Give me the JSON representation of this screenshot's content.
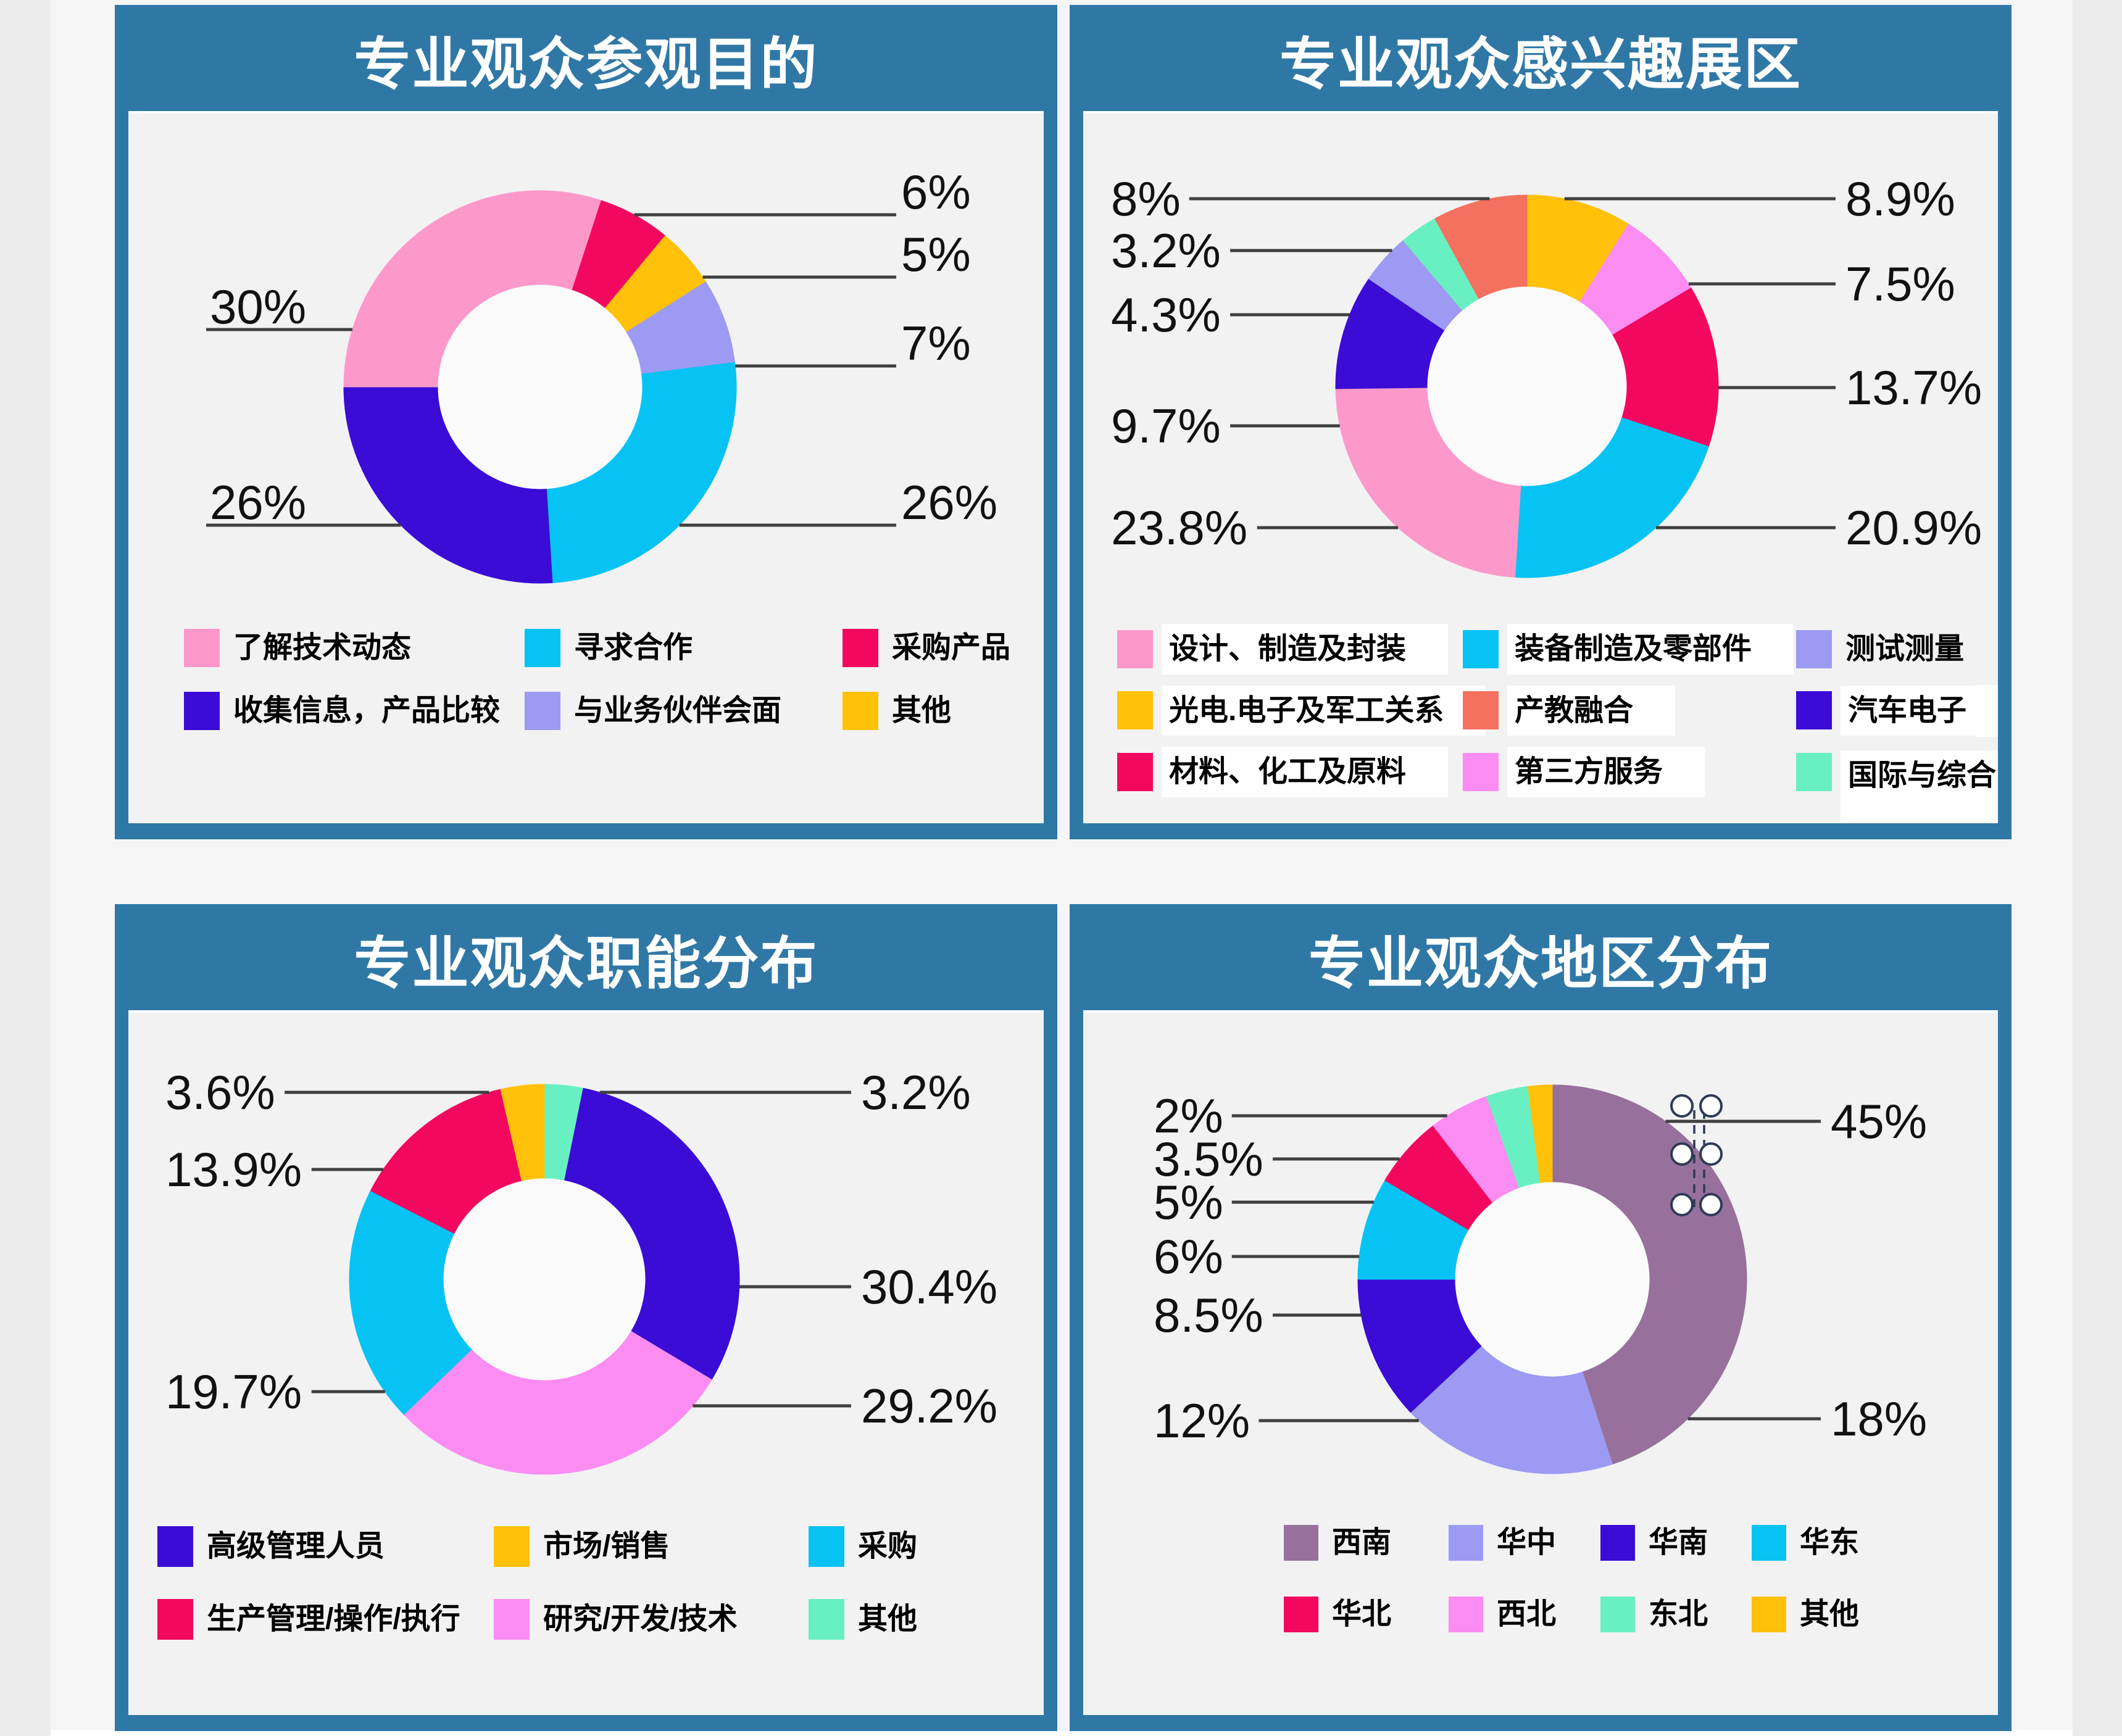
{
  "page": {
    "app_background": "#ECECEC",
    "sheet_background": "#F5F5F6",
    "panel_frame_color": "#2F78A6",
    "panel_title_text_color": "#FFFFFF",
    "leader_line_color": "#3F3F3F"
  },
  "palette": {
    "pink": "#FC99CA",
    "crimson": "#F2095F",
    "gold": "#FFC10A",
    "indigo": "#3A0CD6",
    "periwinkle": "#9D9AF3",
    "cyan": "#07C3F4",
    "coral": "#F4715F",
    "violet": "#FB8CF2",
    "mint": "#68F0C2",
    "mauve": "#97719B"
  },
  "chart_data": [
    {
      "type": "pie",
      "shape": "donut",
      "title": "专业观众参观目的",
      "start_angle": 18,
      "slices": [
        {
          "label": "采购产品",
          "value": 6,
          "color": "crimson",
          "label_side": "right",
          "label_y": 164
        },
        {
          "label": "其他",
          "value": 5,
          "color": "gold",
          "label_side": "right",
          "label_y": 265
        },
        {
          "label": "与业务伙伴会面",
          "value": 7,
          "color": "periwinkle",
          "label_side": "right",
          "label_y": 409
        },
        {
          "label": "寻求合作",
          "value": 26,
          "color": "cyan",
          "label_side": "right",
          "label_y": 667
        },
        {
          "label": "收集信息，产品比较",
          "value": 26,
          "color": "indigo",
          "label_side": "left",
          "label_y": 667
        },
        {
          "label": "了解技术动态",
          "value": 30,
          "color": "pink",
          "label_side": "left",
          "label_y": 350
        }
      ],
      "legend_columns": 3,
      "legend": [
        {
          "label": "了解技术动态",
          "color": "pink"
        },
        {
          "label": "寻求合作",
          "color": "cyan"
        },
        {
          "label": "采购产品",
          "color": "crimson"
        },
        {
          "label": "收集信息，产品比较",
          "color": "indigo"
        },
        {
          "label": "与业务伙伴会面",
          "color": "periwinkle"
        },
        {
          "label": "其他",
          "color": "gold"
        }
      ]
    },
    {
      "type": "pie",
      "shape": "donut",
      "title": "专业观众感兴趣展区",
      "start_angle": 0,
      "slices": [
        {
          "label": "光电.电子及军工关系",
          "value": 8.9,
          "color": "gold",
          "label_side": "right",
          "label_y": 138
        },
        {
          "label": "第三方服务",
          "value": 7.5,
          "color": "violet",
          "label_side": "right",
          "label_y": 276
        },
        {
          "label": "材料、化工及原料",
          "value": 13.7,
          "color": "crimson",
          "label_side": "right",
          "label_y": 444
        },
        {
          "label": "装备制造及零部件",
          "value": 20.9,
          "color": "cyan",
          "label_side": "right",
          "label_y": 671
        },
        {
          "label": "设计、制造及封装",
          "value": 23.8,
          "color": "pink",
          "label_side": "left",
          "label_y": 671
        },
        {
          "label": "汽车电子",
          "value": 9.7,
          "color": "indigo",
          "label_side": "left",
          "label_y": 506
        },
        {
          "label": "测试测量",
          "value": 4.3,
          "color": "periwinkle",
          "label_side": "left",
          "label_y": 326
        },
        {
          "label": "国际与综合",
          "value": 3.2,
          "color": "mint",
          "label_side": "left",
          "label_y": 222
        },
        {
          "label": "产教融合",
          "value": 8,
          "color": "coral",
          "label_side": "left",
          "label_y": 138
        }
      ],
      "legend_columns": 3,
      "legend_boxed": true,
      "legend": [
        {
          "label": "设计、制造及封装",
          "color": "pink",
          "box": true
        },
        {
          "label": "装备制造及零部件",
          "color": "cyan",
          "box": true
        },
        {
          "label": "测试测量",
          "color": "periwinkle",
          "box": false
        },
        {
          "label": "光电.电子及军工关系",
          "color": "gold",
          "box": true
        },
        {
          "label": "产教融合",
          "color": "coral",
          "box": true
        },
        {
          "label": "汽车电子",
          "color": "indigo",
          "box": true
        },
        {
          "label": "材料、化工及原料",
          "color": "crimson",
          "box": true
        },
        {
          "label": "第三方服务",
          "color": "violet",
          "box": true
        },
        {
          "label": "国际与综合",
          "color": "mint",
          "box": true,
          "tall": true
        }
      ]
    },
    {
      "type": "pie",
      "shape": "donut",
      "title": "专业观众职能分布",
      "start_angle": 0,
      "slices": [
        {
          "label": "其他",
          "value": 3.2,
          "color": "mint",
          "label_side": "right",
          "label_y": 129
        },
        {
          "label": "高级管理人员",
          "value": 30.4,
          "color": "indigo",
          "label_side": "right",
          "label_y": 444
        },
        {
          "label": "研究/开发/技术",
          "value": 29.2,
          "color": "violet",
          "label_side": "right",
          "label_y": 637
        },
        {
          "label": "采购",
          "value": 19.7,
          "color": "cyan",
          "label_side": "left",
          "label_y": 614
        },
        {
          "label": "生产管理/操作/执行",
          "value": 13.9,
          "color": "crimson",
          "label_side": "left",
          "label_y": 254
        },
        {
          "label": "市场/销售",
          "value": 3.6,
          "color": "gold",
          "label_side": "left",
          "label_y": 129
        }
      ],
      "legend_columns": 3,
      "legend": [
        {
          "label": "高级管理人员",
          "color": "indigo"
        },
        {
          "label": "市场/销售",
          "color": "gold"
        },
        {
          "label": "采购",
          "color": "cyan"
        },
        {
          "label": "生产管理/操作/执行",
          "color": "crimson"
        },
        {
          "label": "研究/开发/技术",
          "color": "violet"
        },
        {
          "label": "其他",
          "color": "mint"
        }
      ]
    },
    {
      "type": "pie",
      "shape": "donut",
      "title": "专业观众地区分布",
      "start_angle": 0,
      "annotation_icon": "drag-dots",
      "slices": [
        {
          "label": "西南",
          "value": 45,
          "color": "mauve",
          "label_side": "right",
          "label_y": 176
        },
        {
          "label": "华中",
          "value": 18,
          "color": "periwinkle",
          "label_side": "right",
          "label_y": 658
        },
        {
          "label": "华南",
          "value": 12,
          "color": "indigo",
          "label_side": "left",
          "label_y": 661
        },
        {
          "label": "华东",
          "value": 8.5,
          "color": "cyan",
          "label_side": "left",
          "label_y": 490
        },
        {
          "label": "华北",
          "value": 6,
          "color": "crimson",
          "label_side": "left",
          "label_y": 395
        },
        {
          "label": "西北",
          "value": 5,
          "color": "violet",
          "label_side": "left",
          "label_y": 307
        },
        {
          "label": "东北",
          "value": 3.5,
          "color": "mint",
          "label_side": "left",
          "label_y": 237
        },
        {
          "label": "其他",
          "value": 2,
          "color": "gold",
          "label_side": "left",
          "label_y": 167
        }
      ],
      "legend_columns": 4,
      "legend": [
        {
          "label": "西南",
          "color": "mauve"
        },
        {
          "label": "华中",
          "color": "periwinkle"
        },
        {
          "label": "华南",
          "color": "indigo"
        },
        {
          "label": "华东",
          "color": "cyan"
        },
        {
          "label": "华北",
          "color": "crimson"
        },
        {
          "label": "西北",
          "color": "violet"
        },
        {
          "label": "东北",
          "color": "mint"
        },
        {
          "label": "其他",
          "color": "gold"
        }
      ]
    }
  ]
}
